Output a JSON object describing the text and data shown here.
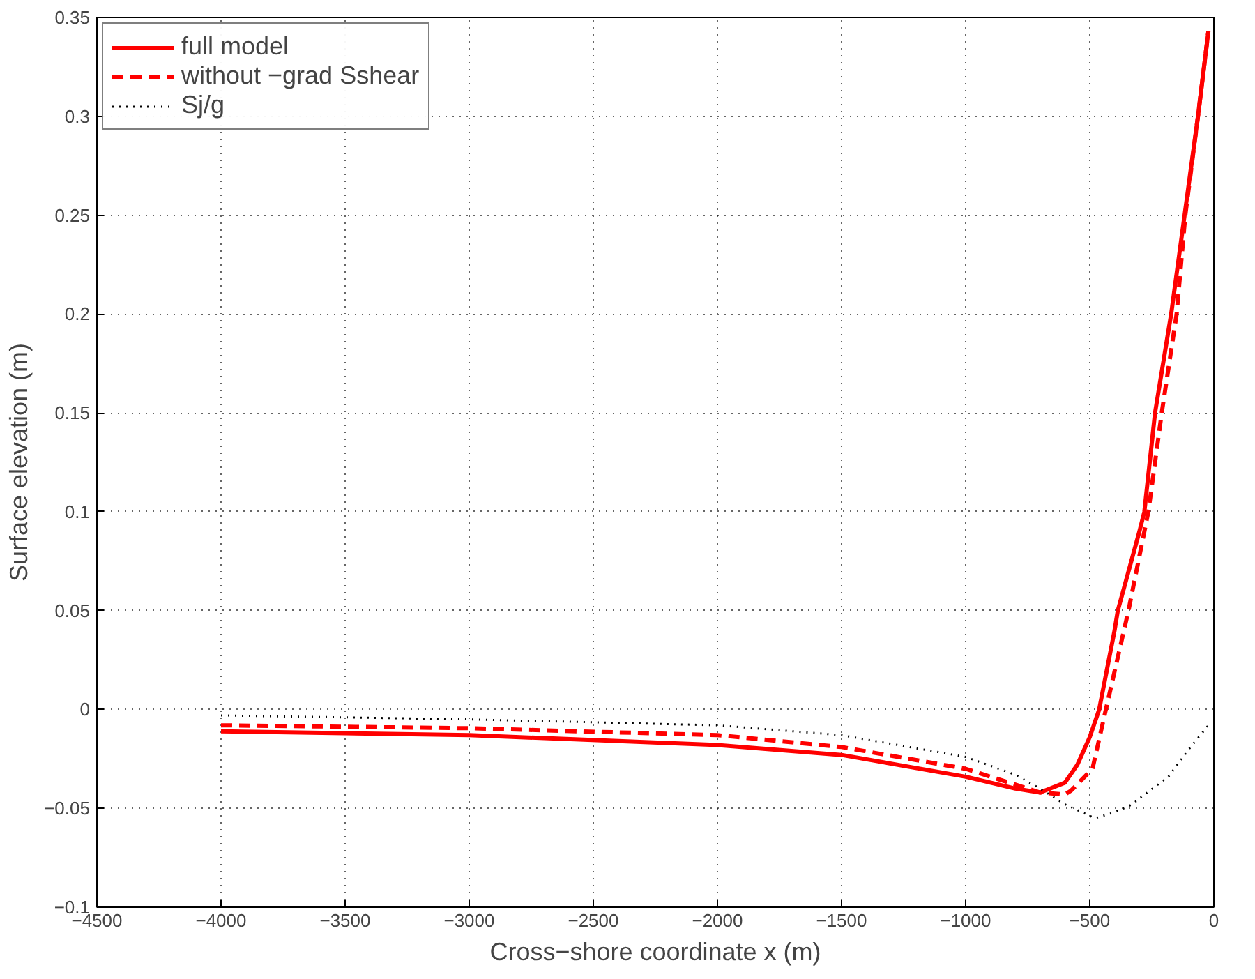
{
  "chart_data": {
    "type": "line",
    "xlabel": "Cross−shore coordinate x (m)",
    "ylabel": "Surface elevation (m)",
    "xlim": [
      -4500,
      0
    ],
    "ylim": [
      -0.1,
      0.35
    ],
    "xticks": [
      {
        "value": -4500,
        "label": "−4500"
      },
      {
        "value": -4000,
        "label": "−4000"
      },
      {
        "value": -3500,
        "label": "−3500"
      },
      {
        "value": -3000,
        "label": "−3000"
      },
      {
        "value": -2500,
        "label": "−2500"
      },
      {
        "value": -2000,
        "label": "−2000"
      },
      {
        "value": -1500,
        "label": "−1500"
      },
      {
        "value": -1000,
        "label": "−1000"
      },
      {
        "value": -500,
        "label": "−500"
      },
      0
    ],
    "yticks": [
      {
        "value": -0.1,
        "label": "−0.1"
      },
      {
        "value": -0.05,
        "label": "−0.05"
      },
      0,
      0.05,
      0.1,
      0.15,
      0.2,
      0.25,
      0.3,
      0.35
    ],
    "grid": true,
    "legend": "top left",
    "series": [
      {
        "name": "full model",
        "color": "#ff0000",
        "line_style": "solid",
        "x": [
          -4000,
          -3000,
          -2000,
          -1500,
          -1000,
          -800,
          -700,
          -600,
          -550,
          -500,
          -462,
          -400,
          -387,
          -300,
          -280,
          -237,
          -172,
          -118,
          -64,
          -22
        ],
        "values": [
          -0.011,
          -0.013,
          -0.018,
          -0.023,
          -0.034,
          -0.04,
          -0.042,
          -0.037,
          -0.028,
          -0.014,
          0,
          0.04,
          0.05,
          0.09,
          0.1,
          0.15,
          0.2,
          0.25,
          0.3,
          0.343
        ]
      },
      {
        "name": "without −grad Sshear",
        "color": "#ff0000",
        "line_style": "dashed",
        "x": [
          -4000,
          -3000,
          -2000,
          -1500,
          -1000,
          -800,
          -700,
          -600,
          -575,
          -489,
          -435,
          -344,
          -264,
          -210,
          -150,
          -115,
          -64,
          -22
        ],
        "values": [
          -0.008,
          -0.0095,
          -0.013,
          -0.019,
          -0.03,
          -0.038,
          -0.042,
          -0.043,
          -0.041,
          -0.03,
          0,
          0.05,
          0.1,
          0.15,
          0.2,
          0.25,
          0.3,
          0.343
        ]
      },
      {
        "name": "Sj/g",
        "color": "#000000",
        "line_style": "dotted",
        "x": [
          -4000,
          -3000,
          -2000,
          -1500,
          -1000,
          -800,
          -700,
          -600,
          -479,
          -400,
          -328,
          -300,
          -183,
          -100,
          -22
        ],
        "values": [
          -0.003,
          -0.005,
          -0.008,
          -0.013,
          -0.024,
          -0.033,
          -0.04,
          -0.048,
          -0.055,
          -0.052,
          -0.048,
          -0.045,
          -0.034,
          -0.02,
          -0.008
        ]
      }
    ]
  }
}
